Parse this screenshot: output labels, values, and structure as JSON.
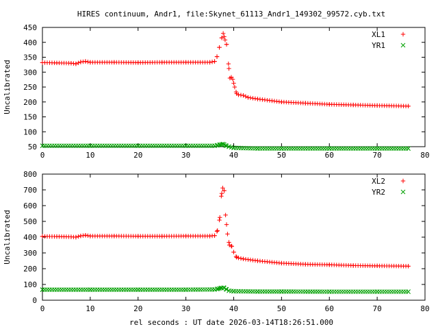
{
  "title": "HIRES continuum, Andr1, file:Skynet_61113_Andr1_149302_99572.cyb.txt",
  "xlabel": "rel seconds : UT date 2026-03-14T18:26:51.000",
  "colors": {
    "series1": "#ff0000",
    "series2": "#00a000",
    "axis": "#000000"
  },
  "chart_data": [
    {
      "type": "scatter",
      "ylabel": "Uncalibrated",
      "xlim": [
        0,
        80
      ],
      "ylim": [
        50,
        450
      ],
      "xticks": [
        0,
        10,
        20,
        30,
        40,
        50,
        60,
        70,
        80
      ],
      "yticks": [
        50,
        100,
        150,
        200,
        250,
        300,
        350,
        400,
        450
      ],
      "legend_position": "top-right",
      "series": [
        {
          "name": "XL1",
          "marker": "plus",
          "baseline": 332,
          "points": [
            [
              0,
              332
            ],
            [
              3,
              331
            ],
            [
              6,
              330
            ],
            [
              7,
              328
            ],
            [
              8,
              334
            ],
            [
              9,
              336
            ],
            [
              10,
              333
            ],
            [
              15,
              333
            ],
            [
              20,
              332
            ],
            [
              25,
              333
            ],
            [
              30,
              333
            ],
            [
              35,
              333
            ],
            [
              36,
              336
            ],
            [
              36.5,
              352
            ],
            [
              37,
              383
            ],
            [
              37.5,
              415
            ],
            [
              37.8,
              430
            ],
            [
              38.2,
              408
            ],
            [
              38.5,
              393
            ],
            [
              38.9,
              328
            ],
            [
              39.2,
              280
            ],
            [
              39.5,
              283
            ],
            [
              39.8,
              276
            ],
            [
              40.2,
              250
            ],
            [
              40.6,
              228
            ],
            [
              41,
              224
            ],
            [
              42,
              222
            ],
            [
              43,
              215
            ],
            [
              45,
              210
            ],
            [
              50,
              200
            ],
            [
              55,
              196
            ],
            [
              60,
              192
            ],
            [
              65,
              190
            ],
            [
              70,
              188
            ],
            [
              76.5,
              186
            ]
          ]
        },
        {
          "name": "YR1",
          "marker": "x",
          "baseline": 53,
          "points": [
            [
              0,
              53
            ],
            [
              10,
              53
            ],
            [
              20,
              53
            ],
            [
              30,
              53
            ],
            [
              36,
              53
            ],
            [
              36.6,
              55
            ],
            [
              37.2,
              57
            ],
            [
              37.8,
              59
            ],
            [
              38.3,
              54
            ],
            [
              39,
              50
            ],
            [
              40,
              46
            ],
            [
              45,
              44
            ],
            [
              50,
              44
            ],
            [
              60,
              44
            ],
            [
              70,
              44
            ],
            [
              76.5,
              44
            ]
          ]
        }
      ]
    },
    {
      "type": "scatter",
      "ylabel": "Uncalibrated",
      "xlim": [
        0,
        80
      ],
      "ylim": [
        0,
        800
      ],
      "xticks": [
        0,
        10,
        20,
        30,
        40,
        50,
        60,
        70,
        80
      ],
      "yticks": [
        0,
        100,
        200,
        300,
        400,
        500,
        600,
        700,
        800
      ],
      "legend_position": "top-right",
      "series": [
        {
          "name": "XL2",
          "marker": "plus",
          "baseline": 405,
          "points": [
            [
              0,
              405
            ],
            [
              3,
              404
            ],
            [
              6,
              402
            ],
            [
              7,
              400
            ],
            [
              8,
              408
            ],
            [
              9,
              412
            ],
            [
              10,
              407
            ],
            [
              15,
              407
            ],
            [
              20,
              406
            ],
            [
              25,
              406
            ],
            [
              30,
              407
            ],
            [
              35,
              407
            ],
            [
              36,
              410
            ],
            [
              36.6,
              442
            ],
            [
              37.1,
              525
            ],
            [
              37.4,
              660
            ],
            [
              37.7,
              712
            ],
            [
              38,
              695
            ],
            [
              38.3,
              540
            ],
            [
              38.7,
              420
            ],
            [
              39.1,
              350
            ],
            [
              39.6,
              342
            ],
            [
              40,
              305
            ],
            [
              40.6,
              272
            ],
            [
              41,
              268
            ],
            [
              42,
              262
            ],
            [
              45,
              250
            ],
            [
              50,
              235
            ],
            [
              55,
              228
            ],
            [
              60,
              225
            ],
            [
              65,
              220
            ],
            [
              70,
              218
            ],
            [
              76.5,
              216
            ]
          ]
        },
        {
          "name": "YR2",
          "marker": "x",
          "baseline": 67,
          "points": [
            [
              0,
              67
            ],
            [
              10,
              67
            ],
            [
              20,
              67
            ],
            [
              30,
              67
            ],
            [
              36,
              68
            ],
            [
              36.7,
              72
            ],
            [
              37.3,
              77
            ],
            [
              37.9,
              80
            ],
            [
              38.4,
              70
            ],
            [
              39,
              60
            ],
            [
              40,
              57
            ],
            [
              45,
              55
            ],
            [
              50,
              55
            ],
            [
              60,
              54
            ],
            [
              70,
              54
            ],
            [
              76.5,
              54
            ]
          ]
        }
      ]
    }
  ]
}
